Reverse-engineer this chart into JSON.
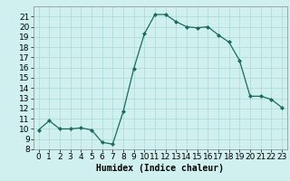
{
  "x": [
    0,
    1,
    2,
    3,
    4,
    5,
    6,
    7,
    8,
    9,
    10,
    11,
    12,
    13,
    14,
    15,
    16,
    17,
    18,
    19,
    20,
    21,
    22,
    23
  ],
  "y": [
    9.9,
    10.8,
    10.0,
    10.0,
    10.1,
    9.9,
    8.7,
    8.5,
    11.7,
    15.9,
    19.3,
    21.2,
    21.2,
    20.5,
    20.0,
    19.9,
    20.0,
    19.2,
    18.5,
    16.7,
    13.2,
    13.2,
    12.9,
    12.1
  ],
  "xlabel": "Humidex (Indice chaleur)",
  "xlim": [
    -0.5,
    23.5
  ],
  "ylim": [
    8,
    22
  ],
  "yticks": [
    8,
    9,
    10,
    11,
    12,
    13,
    14,
    15,
    16,
    17,
    18,
    19,
    20,
    21
  ],
  "xticks": [
    0,
    1,
    2,
    3,
    4,
    5,
    6,
    7,
    8,
    9,
    10,
    11,
    12,
    13,
    14,
    15,
    16,
    17,
    18,
    19,
    20,
    21,
    22,
    23
  ],
  "line_color": "#1a6b5a",
  "marker": "D",
  "marker_size": 2.0,
  "bg_color": "#cff0ee",
  "grid_color": "#aad8d5",
  "axis_fontsize": 7,
  "tick_fontsize": 6.5
}
